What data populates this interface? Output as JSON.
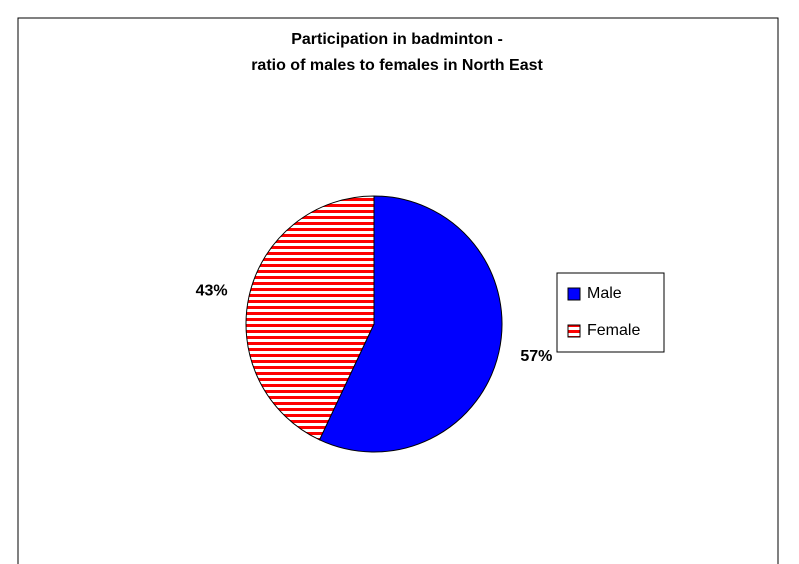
{
  "chart_data": {
    "type": "pie",
    "title": [
      "Participation in badminton -",
      "ratio of males to females in North East"
    ],
    "categories": [
      "Male",
      "Female"
    ],
    "values": [
      57,
      43
    ],
    "value_labels": [
      "57%",
      "43%"
    ],
    "colors": [
      "#0000ff",
      "#ff0000"
    ],
    "hatches": [
      "none",
      "horizontal"
    ],
    "legend": "right"
  }
}
